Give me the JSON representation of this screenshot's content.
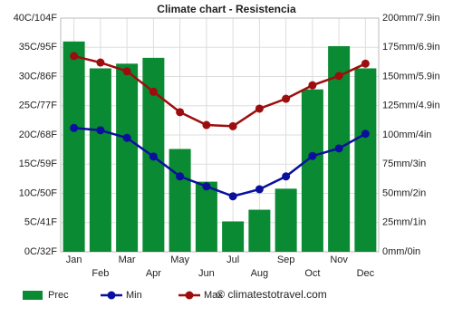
{
  "chart_data": {
    "type": "bar",
    "title": "Climate chart - Resistencia",
    "categories": [
      "Jan",
      "Feb",
      "Mar",
      "Apr",
      "May",
      "Jun",
      "Jul",
      "Aug",
      "Sep",
      "Oct",
      "Nov",
      "Dec"
    ],
    "series": [
      {
        "name": "Prec",
        "type": "bar",
        "axis": "y2",
        "color": "#0a8a32",
        "values": [
          180,
          157,
          161,
          166,
          88,
          60,
          26,
          36,
          54,
          139,
          176,
          157
        ]
      },
      {
        "name": "Min",
        "type": "line",
        "color": "#0a0f9e",
        "values": [
          21.2,
          20.8,
          19.5,
          16.3,
          12.9,
          11.2,
          9.5,
          10.7,
          12.9,
          16.4,
          17.7,
          20.2
        ]
      },
      {
        "name": "Max",
        "type": "line",
        "color": "#9e0d0d",
        "values": [
          33.5,
          32.4,
          30.9,
          27.4,
          23.9,
          21.7,
          21.5,
          24.5,
          26.2,
          28.5,
          30.1,
          32.2
        ]
      }
    ],
    "ylim": [
      0,
      40
    ],
    "yticks": [
      {
        "value": 0,
        "label": "0C/32F"
      },
      {
        "value": 5,
        "label": "5C/41F"
      },
      {
        "value": 10,
        "label": "10C/50F"
      },
      {
        "value": 15,
        "label": "15C/59F"
      },
      {
        "value": 20,
        "label": "20C/68F"
      },
      {
        "value": 25,
        "label": "25C/77F"
      },
      {
        "value": 30,
        "label": "30C/86F"
      },
      {
        "value": 35,
        "label": "35C/95F"
      },
      {
        "value": 40,
        "label": "40C/104F"
      }
    ],
    "y2lim": [
      0,
      200
    ],
    "y2ticks": [
      {
        "value": 0,
        "label": "0mm/0in"
      },
      {
        "value": 25,
        "label": "25mm/1in"
      },
      {
        "value": 50,
        "label": "50mm/2in"
      },
      {
        "value": 75,
        "label": "75mm/3in"
      },
      {
        "value": 100,
        "label": "100mm/4in"
      },
      {
        "value": 125,
        "label": "125mm/4.9in"
      },
      {
        "value": 150,
        "label": "150mm/5.9in"
      },
      {
        "value": 175,
        "label": "175mm/6.9in"
      },
      {
        "value": 200,
        "label": "200mm/7.9in"
      }
    ],
    "grid": true,
    "legend": "bottom",
    "source": "© climatestotravel.com"
  }
}
